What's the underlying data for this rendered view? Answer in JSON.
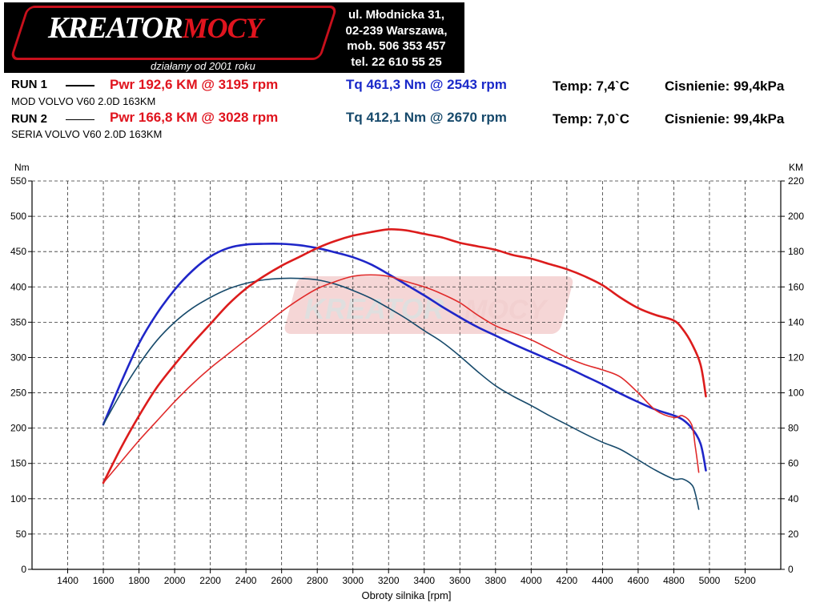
{
  "header": {
    "logo_text_main": "KREATOR",
    "logo_text_accent": "MOCY",
    "logo_tagline": "działamy od 2001 roku",
    "address_lines": [
      "ul. Młodnicka 31,",
      "02-239  Warszawa,",
      "mob.  506 353 457",
      "tel.  22 610 55 25"
    ]
  },
  "runs": [
    {
      "label": "RUN 1",
      "description": "MOD VOLVO V60 2.0D 163KM",
      "pwr_text": "Pwr  192,6 KM @ 3195 rpm",
      "tq_text": "Tq 461,3 Nm @ 2543 rpm",
      "temp_text": "Temp: 7,4`C",
      "pressure_text": "Cisnienie: 99,4kPa"
    },
    {
      "label": "RUN 2",
      "description": "SERIA VOLVO V60 2.0D 163KM",
      "pwr_text": "Pwr  166,8 KM @ 3028 rpm",
      "tq_text": "Tq 412,1 Nm @ 2670 rpm",
      "temp_text": "Temp: 7,0`C",
      "pressure_text": "Cisnienie: 99,4kPa"
    }
  ],
  "colors": {
    "run1_power": "#dc1c1c",
    "run2_power": "#e02a2a",
    "run1_torque": "#1f26c8",
    "run2_torque": "#174a6b",
    "grid": "#333333"
  },
  "chart_data": {
    "type": "line",
    "xlabel": "Obroty silnika [rpm]",
    "ylabel_left": "Nm",
    "ylabel_right": "KM",
    "xlim": [
      1200,
      5400
    ],
    "ylim_left": [
      0,
      550
    ],
    "ylim_right": [
      0,
      220
    ],
    "x_ticks": [
      1400,
      1600,
      1800,
      2000,
      2200,
      2400,
      2600,
      2800,
      3000,
      3200,
      3400,
      3600,
      3800,
      4000,
      4200,
      4400,
      4600,
      4800,
      5000,
      5200
    ],
    "y_ticks_left": [
      0,
      50,
      100,
      150,
      200,
      250,
      300,
      350,
      400,
      450,
      500,
      550
    ],
    "y_ticks_right": [
      0,
      20,
      40,
      60,
      80,
      100,
      120,
      140,
      160,
      180,
      200,
      220
    ],
    "grid": true,
    "series": [
      {
        "axis": "left",
        "width": 2.6,
        "color_key": "run1_torque",
        "x": [
          1600,
          1700,
          1800,
          1900,
          2000,
          2100,
          2200,
          2300,
          2400,
          2500,
          2600,
          2700,
          2800,
          2900,
          3000,
          3100,
          3200,
          3300,
          3400,
          3500,
          3600,
          3700,
          3800,
          3900,
          4000,
          4100,
          4200,
          4300,
          4400,
          4500,
          4600,
          4700,
          4800,
          4850,
          4900,
          4950,
          4980
        ],
        "values": [
          205,
          265,
          320,
          362,
          396,
          423,
          443,
          455,
          460,
          461,
          461,
          459,
          455,
          449,
          442,
          432,
          418,
          403,
          388,
          372,
          357,
          343,
          331,
          319,
          308,
          297,
          286,
          274,
          262,
          249,
          237,
          226,
          218,
          212,
          200,
          178,
          140
        ]
      },
      {
        "axis": "left",
        "width": 1.6,
        "color_key": "run2_torque",
        "x": [
          1600,
          1700,
          1800,
          1900,
          2000,
          2100,
          2200,
          2300,
          2400,
          2500,
          2600,
          2700,
          2800,
          2900,
          3000,
          3100,
          3200,
          3300,
          3400,
          3500,
          3600,
          3700,
          3800,
          3900,
          4000,
          4100,
          4200,
          4300,
          4400,
          4500,
          4600,
          4700,
          4800,
          4850,
          4900,
          4920,
          4940
        ],
        "values": [
          205,
          250,
          290,
          324,
          350,
          370,
          385,
          397,
          405,
          410,
          412,
          412,
          410,
          404,
          395,
          384,
          370,
          355,
          338,
          322,
          302,
          280,
          260,
          245,
          232,
          218,
          205,
          192,
          180,
          170,
          155,
          140,
          128,
          128,
          120,
          108,
          85
        ]
      },
      {
        "axis": "right",
        "width": 2.6,
        "color_key": "run1_power",
        "x": [
          1600,
          1700,
          1800,
          1900,
          2000,
          2100,
          2200,
          2300,
          2400,
          2500,
          2600,
          2700,
          2800,
          2900,
          3000,
          3100,
          3200,
          3300,
          3400,
          3500,
          3600,
          3700,
          3800,
          3900,
          4000,
          4100,
          4200,
          4300,
          4400,
          4500,
          4600,
          4700,
          4800,
          4850,
          4900,
          4950,
          4980
        ],
        "values": [
          49,
          69,
          87,
          103,
          116,
          128,
          139,
          150,
          159,
          166,
          172,
          177,
          182,
          186,
          189,
          191,
          192.6,
          192,
          190,
          188,
          185,
          183,
          181,
          178,
          176,
          173,
          170,
          166,
          161,
          154,
          148,
          144,
          141,
          136,
          128,
          116,
          98
        ]
      },
      {
        "axis": "right",
        "width": 1.6,
        "color_key": "run2_power",
        "x": [
          1600,
          1700,
          1800,
          1900,
          2000,
          2100,
          2200,
          2300,
          2400,
          2500,
          2600,
          2700,
          2800,
          2900,
          3000,
          3100,
          3200,
          3300,
          3400,
          3500,
          3600,
          3700,
          3800,
          3900,
          4000,
          4100,
          4200,
          4300,
          4400,
          4500,
          4600,
          4700,
          4800,
          4850,
          4900,
          4920,
          4940
        ],
        "values": [
          49,
          61,
          73,
          84,
          95,
          105,
          114,
          122,
          130,
          138,
          146,
          153,
          159,
          163,
          166,
          166.8,
          166,
          163,
          160,
          156,
          151,
          144,
          138,
          134,
          130,
          125,
          120,
          116,
          113,
          109,
          100,
          90,
          86,
          87,
          82,
          70,
          55
        ]
      }
    ]
  }
}
